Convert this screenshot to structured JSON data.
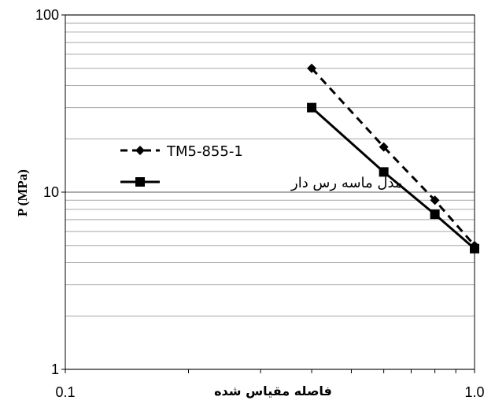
{
  "chart_data": {
    "type": "line",
    "x_scale": "log",
    "y_scale": "log",
    "xlim": [
      0.1,
      1.0
    ],
    "ylim": [
      1,
      100
    ],
    "xlabel": "فاصله مقیاس شده",
    "ylabel": "P (MPa)",
    "x_ticks": [
      "0.1",
      "1.0"
    ],
    "y_ticks": [
      "1",
      "10",
      "100"
    ],
    "grid": "horizontal-major-minor",
    "legend_position": "left-middle",
    "series": [
      {
        "name": "TM5-855-1",
        "style": "dashed",
        "marker": "diamond",
        "color": "#000000",
        "x": [
          0.4,
          0.6,
          0.8,
          1.0
        ],
        "y": [
          50,
          18,
          9,
          5
        ]
      },
      {
        "name": "مدل ماسه رس دار",
        "style": "solid",
        "marker": "square",
        "color": "#000000",
        "x": [
          0.4,
          0.6,
          0.8,
          1.0
        ],
        "y": [
          30,
          13,
          7.5,
          4.8
        ]
      }
    ]
  }
}
